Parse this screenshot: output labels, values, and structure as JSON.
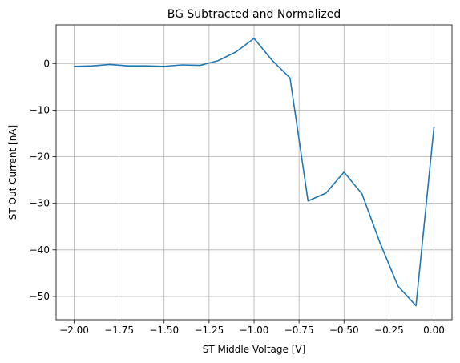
{
  "chart_data": {
    "type": "line",
    "title": "BG Subtracted and Normalized",
    "xlabel": "ST Middle Voltage [V]",
    "ylabel": "ST Out Current [nA]",
    "xlim": [
      -2.1,
      0.1
    ],
    "ylim": [
      -55,
      8.3
    ],
    "grid": true,
    "x_ticks": [
      -2.0,
      -1.75,
      -1.5,
      -1.25,
      -1.0,
      -0.75,
      -0.5,
      -0.25,
      0.0
    ],
    "x_tick_labels": [
      "−2.00",
      "−1.75",
      "−1.50",
      "−1.25",
      "−1.00",
      "−0.75",
      "−0.50",
      "−0.25",
      "0.00"
    ],
    "y_ticks": [
      0,
      -10,
      -20,
      -30,
      -40,
      -50
    ],
    "y_tick_labels": [
      "0",
      "−10",
      "−20",
      "−30",
      "−40",
      "−50"
    ],
    "series": [
      {
        "color": "#1f77b4",
        "x": [
          -2.0,
          -1.9,
          -1.8,
          -1.7,
          -1.6,
          -1.5,
          -1.4,
          -1.3,
          -1.2,
          -1.1,
          -1.0,
          -0.9,
          -0.8,
          -0.7,
          -0.6,
          -0.5,
          -0.4,
          -0.3,
          -0.2,
          -0.1,
          0.0
        ],
        "y": [
          -0.6,
          -0.5,
          -0.2,
          -0.5,
          -0.5,
          -0.6,
          -0.3,
          -0.4,
          0.6,
          2.5,
          5.4,
          0.7,
          -3.1,
          -29.5,
          -27.8,
          -23.3,
          -28.0,
          -38.5,
          -47.8,
          -52.0,
          -13.6
        ]
      }
    ]
  }
}
